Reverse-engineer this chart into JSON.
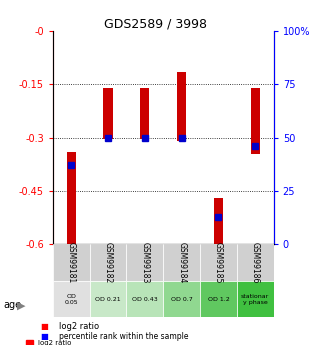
{
  "title": "GDS2589 / 3998",
  "samples": [
    "GSM99181",
    "GSM99182",
    "GSM99183",
    "GSM99184",
    "GSM99185",
    "GSM99186"
  ],
  "log2_ratio": [
    -0.34,
    -0.16,
    -0.16,
    -0.115,
    -0.47,
    -0.16
  ],
  "log2_bottom": [
    -0.6,
    -0.305,
    -0.305,
    -0.31,
    -0.6,
    -0.345
  ],
  "percentile": [
    0.37,
    0.5,
    0.5,
    0.5,
    0.13,
    0.46
  ],
  "ylim_left": [
    -0.6,
    0
  ],
  "ylim_right": [
    0,
    100
  ],
  "yticks_left": [
    -0.6,
    -0.45,
    -0.3,
    -0.15,
    0
  ],
  "yticks_right": [
    0,
    25,
    50,
    75,
    100
  ],
  "ytick_labels_left": [
    "-0.6",
    "-0.45",
    "-0.3",
    "-0.15",
    "-0"
  ],
  "ytick_labels_right": [
    "0",
    "25",
    "50",
    "75",
    "100%"
  ],
  "bar_color": "#cc0000",
  "dot_color": "#0000cc",
  "age_labels": [
    "OD\n0.05",
    "OD 0.21",
    "OD 0.43",
    "OD 0.7",
    "OD 1.2",
    "stationar\ny phase"
  ],
  "age_colors": [
    "#e0e0e0",
    "#c8e8c8",
    "#b8e4b8",
    "#90d890",
    "#60c860",
    "#40c040"
  ],
  "sample_bg_color": "#d0d0d0",
  "grid_color": "#555555",
  "bar_width": 0.25
}
